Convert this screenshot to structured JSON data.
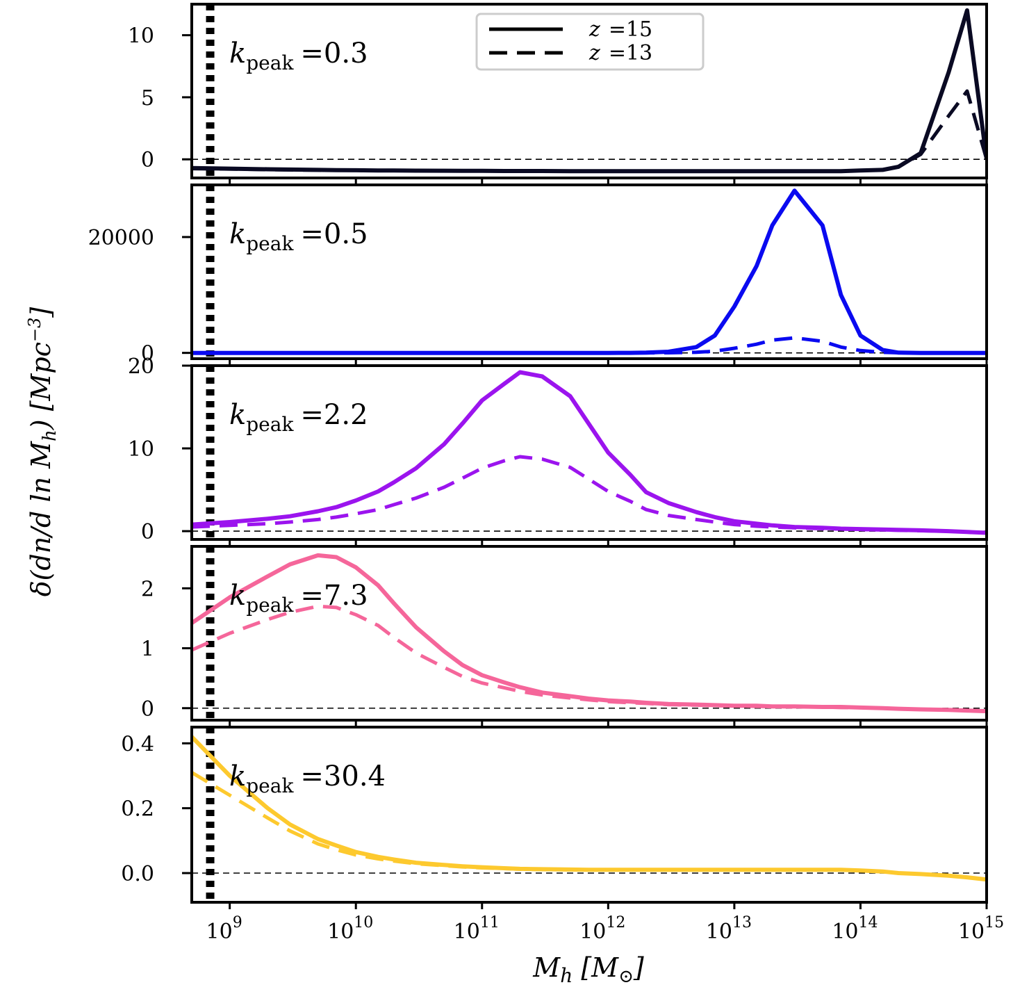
{
  "chart_data": {
    "type": "line",
    "xscale": "log",
    "xlim": [
      500000000.0,
      1000000000000000.0
    ],
    "xlabel": "M_h [M_⊙]",
    "ylabel": "δ(dn/d ln M_h) [Mpc^-3]",
    "x_ticks": [
      {
        "value": 1000000000.0,
        "base": "10",
        "exp": "9"
      },
      {
        "value": 10000000000.0,
        "base": "10",
        "exp": "10"
      },
      {
        "value": 100000000000.0,
        "base": "10",
        "exp": "11"
      },
      {
        "value": 1000000000000.0,
        "base": "10",
        "exp": "12"
      },
      {
        "value": 10000000000000.0,
        "base": "10",
        "exp": "13"
      },
      {
        "value": 100000000000000.0,
        "base": "10",
        "exp": "14"
      },
      {
        "value": 1000000000000000.0,
        "base": "10",
        "exp": "15"
      }
    ],
    "vertical_marker": {
      "x": 700000000.0,
      "style": "dotted"
    },
    "legend": {
      "position": "top-center",
      "entries": [
        {
          "symbol": "z",
          "value": "=15",
          "style": "solid"
        },
        {
          "symbol": "z",
          "value": "=13",
          "style": "dashed"
        }
      ]
    },
    "x": [
      500000000.0,
      1000000000.0,
      2000000000.0,
      3000000000.0,
      5000000000.0,
      7000000000.0,
      10000000000.0,
      15000000000.0,
      20000000000.0,
      30000000000.0,
      50000000000.0,
      70000000000.0,
      100000000000.0,
      150000000000.0,
      200000000000.0,
      300000000000.0,
      500000000000.0,
      700000000000.0,
      1000000000000.0,
      1500000000000.0,
      2000000000000.0,
      3000000000000.0,
      5000000000000.0,
      7000000000000.0,
      10000000000000.0,
      15000000000000.0,
      20000000000000.0,
      30000000000000.0,
      50000000000000.0,
      70000000000000.0,
      100000000000000.0,
      150000000000000.0,
      200000000000000.0,
      300000000000000.0,
      500000000000000.0,
      700000000000000.0,
      1000000000000000.0
    ],
    "panels": [
      {
        "label_symbol": "k",
        "label_sub": "peak",
        "label_value": "=0.3",
        "color": "#0a0a23",
        "ylim": [
          -1.5,
          12.5
        ],
        "yticks": [
          {
            "value": 0,
            "label": "0"
          },
          {
            "value": 5,
            "label": "5"
          },
          {
            "value": 10,
            "label": "10"
          }
        ],
        "series": [
          {
            "name": "z=15",
            "style": "solid",
            "values": [
              -0.7,
              -0.75,
              -0.8,
              -0.82,
              -0.85,
              -0.87,
              -0.88,
              -0.9,
              -0.9,
              -0.91,
              -0.92,
              -0.93,
              -0.93,
              -0.94,
              -0.94,
              -0.94,
              -0.95,
              -0.95,
              -0.95,
              -0.95,
              -0.95,
              -0.95,
              -0.95,
              -0.95,
              -0.95,
              -0.95,
              -0.95,
              -0.95,
              -0.95,
              -0.95,
              -0.9,
              -0.85,
              -0.6,
              0.5,
              7.0,
              12.0,
              0.0
            ]
          },
          {
            "name": "z=13",
            "style": "dashed",
            "values": [
              -0.75,
              -0.78,
              -0.82,
              -0.85,
              -0.87,
              -0.88,
              -0.89,
              -0.9,
              -0.91,
              -0.92,
              -0.92,
              -0.93,
              -0.93,
              -0.94,
              -0.94,
              -0.94,
              -0.95,
              -0.95,
              -0.95,
              -0.95,
              -0.95,
              -0.95,
              -0.95,
              -0.95,
              -0.95,
              -0.95,
              -0.95,
              -0.95,
              -0.95,
              -0.95,
              -0.9,
              -0.85,
              -0.6,
              0.4,
              3.5,
              5.5,
              0.0
            ]
          }
        ]
      },
      {
        "label_symbol": "k",
        "label_sub": "peak",
        "label_value": "=0.5",
        "color": "#0a0af0",
        "ylim": [
          -1000,
          29000
        ],
        "yticks": [
          {
            "value": 0,
            "label": "0"
          },
          {
            "value": 20000,
            "label": "20000"
          }
        ],
        "series": [
          {
            "name": "z=15",
            "style": "solid",
            "values": [
              0,
              0,
              0,
              0,
              0,
              0,
              0,
              0,
              0,
              0,
              0,
              0,
              0,
              0,
              0,
              0,
              0,
              0,
              0,
              10,
              50,
              200,
              1000,
              3000,
              8000,
              15000,
              22000,
              28000,
              22000,
              10000,
              3000,
              500,
              50,
              0,
              0,
              0,
              0
            ]
          },
          {
            "name": "z=13",
            "style": "dashed",
            "values": [
              0,
              0,
              0,
              0,
              0,
              0,
              0,
              0,
              0,
              0,
              0,
              0,
              0,
              0,
              0,
              0,
              0,
              0,
              0,
              0,
              5,
              20,
              100,
              300,
              800,
              1500,
              2200,
              2600,
              2000,
              1000,
              400,
              100,
              20,
              0,
              0,
              0,
              0
            ]
          }
        ]
      },
      {
        "label_symbol": "k",
        "label_sub": "peak",
        "label_value": "=2.2",
        "color": "#9b14ee",
        "ylim": [
          -1,
          20
        ],
        "yticks": [
          {
            "value": 0,
            "label": "0"
          },
          {
            "value": 10,
            "label": "10"
          },
          {
            "value": 20,
            "label": "20"
          }
        ],
        "series": [
          {
            "name": "z=15",
            "style": "solid",
            "values": [
              0.8,
              1.1,
              1.5,
              1.8,
              2.4,
              2.9,
              3.7,
              4.8,
              5.9,
              7.6,
              10.5,
              13.0,
              15.8,
              17.8,
              19.2,
              18.7,
              16.3,
              13.0,
              9.5,
              6.8,
              4.7,
              3.4,
              2.3,
              1.7,
              1.2,
              0.9,
              0.7,
              0.5,
              0.4,
              0.3,
              0.25,
              0.2,
              0.15,
              0.1,
              0.0,
              -0.1,
              -0.2
            ]
          },
          {
            "name": "z=13",
            "style": "dashed",
            "values": [
              0.5,
              0.7,
              0.9,
              1.1,
              1.4,
              1.7,
              2.1,
              2.6,
              3.2,
              4.0,
              5.3,
              6.4,
              7.6,
              8.5,
              9.0,
              8.7,
              7.7,
              6.3,
              4.8,
              3.6,
              2.6,
              1.9,
              1.4,
              1.1,
              0.8,
              0.6,
              0.5,
              0.4,
              0.3,
              0.25,
              0.2,
              0.15,
              0.1,
              0.05,
              0.0,
              -0.1,
              -0.2
            ]
          }
        ]
      },
      {
        "label_symbol": "k",
        "label_sub": "peak",
        "label_value": "=7.3",
        "color": "#f5669a",
        "ylim": [
          -0.2,
          2.7
        ],
        "yticks": [
          {
            "value": 0,
            "label": "0"
          },
          {
            "value": 1,
            "label": "1"
          },
          {
            "value": 2,
            "label": "2"
          }
        ],
        "series": [
          {
            "name": "z=15",
            "style": "solid",
            "values": [
              1.42,
              1.85,
              2.2,
              2.4,
              2.55,
              2.52,
              2.35,
              2.05,
              1.75,
              1.35,
              0.95,
              0.72,
              0.55,
              0.43,
              0.35,
              0.26,
              0.2,
              0.16,
              0.13,
              0.11,
              0.09,
              0.07,
              0.06,
              0.05,
              0.04,
              0.04,
              0.03,
              0.03,
              0.02,
              0.02,
              0.01,
              0.0,
              -0.01,
              -0.02,
              -0.03,
              -0.04,
              -0.05
            ]
          },
          {
            "name": "z=13",
            "style": "dashed",
            "values": [
              0.97,
              1.25,
              1.48,
              1.6,
              1.7,
              1.68,
              1.56,
              1.38,
              1.18,
              0.92,
              0.68,
              0.53,
              0.42,
              0.34,
              0.28,
              0.22,
              0.17,
              0.14,
              0.11,
              0.09,
              0.08,
              0.06,
              0.05,
              0.04,
              0.04,
              0.03,
              0.03,
              0.02,
              0.02,
              0.01,
              0.01,
              0.0,
              -0.01,
              -0.02,
              -0.03,
              -0.04,
              -0.05
            ]
          }
        ]
      },
      {
        "label_symbol": "k",
        "label_sub": "peak",
        "label_value": "=30.4",
        "color": "#fdc92e",
        "ylim": [
          -0.09,
          0.45
        ],
        "yticks": [
          {
            "value": 0,
            "label": "0.0"
          },
          {
            "value": 0.2,
            "label": "0.2"
          },
          {
            "value": 0.4,
            "label": "0.4"
          }
        ],
        "series": [
          {
            "name": "z=15",
            "style": "solid",
            "values": [
              0.42,
              0.3,
              0.2,
              0.15,
              0.105,
              0.085,
              0.065,
              0.05,
              0.042,
              0.032,
              0.025,
              0.021,
              0.018,
              0.015,
              0.013,
              0.012,
              0.011,
              0.01,
              0.01,
              0.01,
              0.01,
              0.01,
              0.01,
              0.01,
              0.01,
              0.01,
              0.01,
              0.01,
              0.01,
              0.01,
              0.008,
              0.005,
              0.0,
              -0.003,
              -0.008,
              -0.013,
              -0.02
            ]
          },
          {
            "name": "z=13",
            "style": "dashed",
            "values": [
              0.31,
              0.24,
              0.17,
              0.13,
              0.09,
              0.072,
              0.056,
              0.044,
              0.037,
              0.029,
              0.023,
              0.019,
              0.016,
              0.014,
              0.012,
              0.011,
              0.01,
              0.01,
              0.01,
              0.01,
              0.01,
              0.01,
              0.01,
              0.01,
              0.01,
              0.01,
              0.01,
              0.01,
              0.01,
              0.01,
              0.008,
              0.005,
              0.0,
              -0.003,
              -0.008,
              -0.013,
              -0.02
            ]
          }
        ]
      }
    ]
  }
}
